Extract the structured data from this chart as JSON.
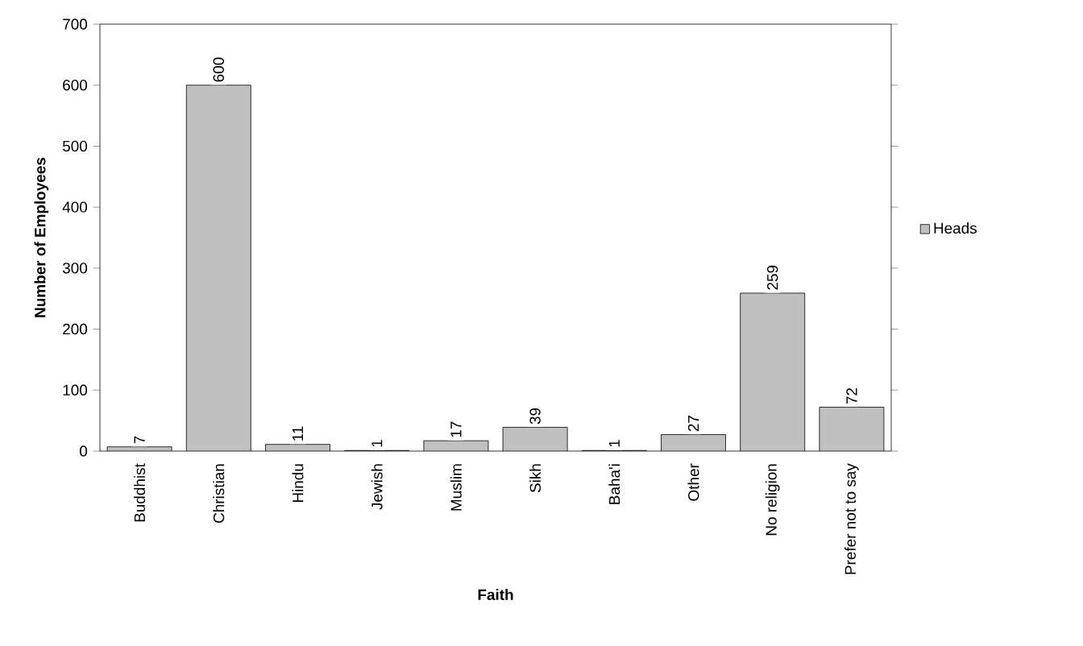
{
  "chart_data": {
    "type": "bar",
    "categories": [
      "Buddhist",
      "Christian",
      "Hindu",
      "Jewish",
      "Muslim",
      "Sikh",
      "Baha'i",
      "Other",
      "No religion",
      "Prefer not to say"
    ],
    "series": [
      {
        "name": "Heads",
        "color": "#c0c0c0",
        "values": [
          7,
          600,
          11,
          1,
          17,
          39,
          1,
          27,
          259,
          72
        ]
      }
    ],
    "xlabel": "Faith",
    "ylabel": "Number of Employees",
    "ylim": [
      0,
      700
    ],
    "yticks": [
      0,
      100,
      200,
      300,
      400,
      500,
      600,
      700
    ],
    "data_labels": true,
    "legend": "right",
    "grid": false
  }
}
